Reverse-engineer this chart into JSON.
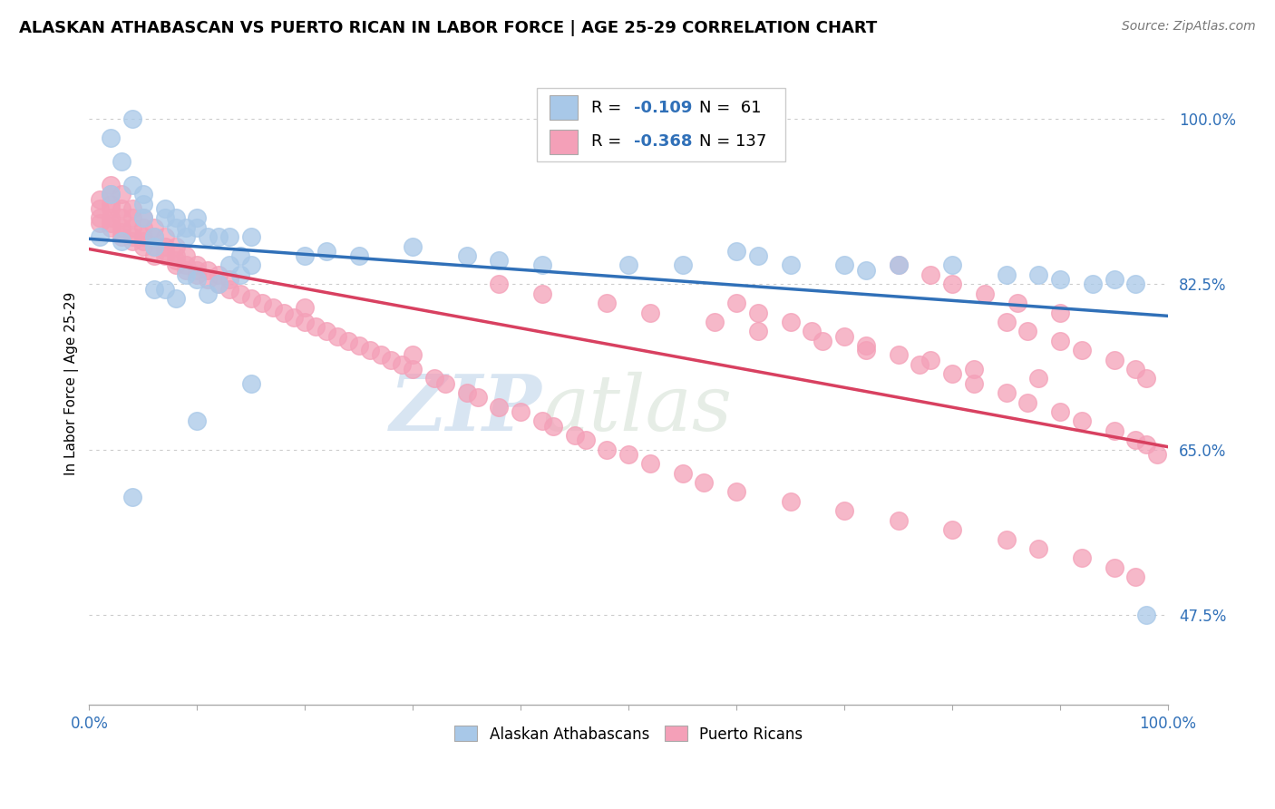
{
  "title": "ALASKAN ATHABASCAN VS PUERTO RICAN IN LABOR FORCE | AGE 25-29 CORRELATION CHART",
  "source": "Source: ZipAtlas.com",
  "ylabel": "In Labor Force | Age 25-29",
  "yticks": [
    0.475,
    0.65,
    0.825,
    1.0
  ],
  "ytick_labels": [
    "47.5%",
    "65.0%",
    "82.5%",
    "100.0%"
  ],
  "xlim": [
    0.0,
    1.0
  ],
  "ylim": [
    0.38,
    1.06
  ],
  "blue_R": -0.109,
  "blue_N": 61,
  "pink_R": -0.368,
  "pink_N": 137,
  "blue_color": "#a8c8e8",
  "pink_color": "#f4a0b8",
  "blue_line_color": "#3070b8",
  "pink_line_color": "#d84060",
  "background_color": "#ffffff",
  "grid_color": "#cccccc",
  "watermark_zip": "ZIP",
  "watermark_atlas": "atlas",
  "blue_scatter_x": [
    0.01,
    0.02,
    0.02,
    0.03,
    0.03,
    0.04,
    0.04,
    0.05,
    0.05,
    0.05,
    0.06,
    0.06,
    0.07,
    0.07,
    0.08,
    0.08,
    0.09,
    0.09,
    0.1,
    0.1,
    0.11,
    0.12,
    0.13,
    0.14,
    0.15,
    0.06,
    0.07,
    0.08,
    0.09,
    0.1,
    0.11,
    0.12,
    0.13,
    0.14,
    0.15,
    0.2,
    0.22,
    0.25,
    0.3,
    0.35,
    0.38,
    0.42,
    0.5,
    0.55,
    0.6,
    0.65,
    0.7,
    0.75,
    0.8,
    0.85,
    0.88,
    0.9,
    0.93,
    0.95,
    0.97,
    0.04,
    0.1,
    0.15,
    0.62,
    0.72,
    0.98
  ],
  "blue_scatter_y": [
    0.875,
    0.92,
    0.98,
    0.955,
    0.87,
    0.93,
    1.0,
    0.895,
    0.91,
    0.92,
    0.865,
    0.875,
    0.895,
    0.905,
    0.885,
    0.895,
    0.875,
    0.885,
    0.885,
    0.895,
    0.875,
    0.875,
    0.875,
    0.855,
    0.875,
    0.82,
    0.82,
    0.81,
    0.835,
    0.83,
    0.815,
    0.825,
    0.845,
    0.835,
    0.845,
    0.855,
    0.86,
    0.855,
    0.865,
    0.855,
    0.85,
    0.845,
    0.845,
    0.845,
    0.86,
    0.845,
    0.845,
    0.845,
    0.845,
    0.835,
    0.835,
    0.83,
    0.825,
    0.83,
    0.825,
    0.6,
    0.68,
    0.72,
    0.855,
    0.84,
    0.475
  ],
  "pink_scatter_x": [
    0.01,
    0.01,
    0.01,
    0.01,
    0.02,
    0.02,
    0.02,
    0.02,
    0.02,
    0.02,
    0.02,
    0.03,
    0.03,
    0.03,
    0.03,
    0.03,
    0.03,
    0.04,
    0.04,
    0.04,
    0.04,
    0.04,
    0.05,
    0.05,
    0.05,
    0.05,
    0.05,
    0.06,
    0.06,
    0.06,
    0.06,
    0.07,
    0.07,
    0.07,
    0.07,
    0.08,
    0.08,
    0.08,
    0.08,
    0.09,
    0.09,
    0.09,
    0.1,
    0.1,
    0.1,
    0.11,
    0.11,
    0.12,
    0.12,
    0.13,
    0.13,
    0.14,
    0.15,
    0.16,
    0.17,
    0.18,
    0.19,
    0.2,
    0.2,
    0.21,
    0.22,
    0.23,
    0.24,
    0.25,
    0.26,
    0.27,
    0.28,
    0.29,
    0.3,
    0.3,
    0.32,
    0.33,
    0.35,
    0.36,
    0.38,
    0.4,
    0.42,
    0.43,
    0.45,
    0.46,
    0.48,
    0.5,
    0.52,
    0.55,
    0.57,
    0.6,
    0.62,
    0.65,
    0.67,
    0.7,
    0.72,
    0.75,
    0.77,
    0.8,
    0.82,
    0.85,
    0.87,
    0.9,
    0.92,
    0.95,
    0.97,
    0.98,
    0.99,
    0.85,
    0.87,
    0.9,
    0.92,
    0.95,
    0.97,
    0.98,
    0.75,
    0.78,
    0.8,
    0.83,
    0.86,
    0.9,
    0.38,
    0.42,
    0.48,
    0.52,
    0.58,
    0.62,
    0.68,
    0.72,
    0.78,
    0.82,
    0.88,
    0.6,
    0.65,
    0.7,
    0.75,
    0.8,
    0.85,
    0.88,
    0.92,
    0.95,
    0.97
  ],
  "pink_scatter_y": [
    0.89,
    0.895,
    0.905,
    0.915,
    0.885,
    0.89,
    0.895,
    0.905,
    0.91,
    0.92,
    0.93,
    0.875,
    0.88,
    0.885,
    0.895,
    0.905,
    0.92,
    0.87,
    0.875,
    0.885,
    0.895,
    0.905,
    0.865,
    0.87,
    0.875,
    0.885,
    0.895,
    0.855,
    0.865,
    0.875,
    0.885,
    0.855,
    0.86,
    0.865,
    0.875,
    0.845,
    0.85,
    0.855,
    0.865,
    0.84,
    0.845,
    0.855,
    0.835,
    0.84,
    0.845,
    0.83,
    0.84,
    0.825,
    0.835,
    0.82,
    0.83,
    0.815,
    0.81,
    0.805,
    0.8,
    0.795,
    0.79,
    0.785,
    0.8,
    0.78,
    0.775,
    0.77,
    0.765,
    0.76,
    0.755,
    0.75,
    0.745,
    0.74,
    0.735,
    0.75,
    0.725,
    0.72,
    0.71,
    0.705,
    0.695,
    0.69,
    0.68,
    0.675,
    0.665,
    0.66,
    0.65,
    0.645,
    0.635,
    0.625,
    0.615,
    0.805,
    0.795,
    0.785,
    0.775,
    0.77,
    0.76,
    0.75,
    0.74,
    0.73,
    0.72,
    0.71,
    0.7,
    0.69,
    0.68,
    0.67,
    0.66,
    0.655,
    0.645,
    0.785,
    0.775,
    0.765,
    0.755,
    0.745,
    0.735,
    0.725,
    0.845,
    0.835,
    0.825,
    0.815,
    0.805,
    0.795,
    0.825,
    0.815,
    0.805,
    0.795,
    0.785,
    0.775,
    0.765,
    0.755,
    0.745,
    0.735,
    0.725,
    0.605,
    0.595,
    0.585,
    0.575,
    0.565,
    0.555,
    0.545,
    0.535,
    0.525,
    0.515
  ]
}
